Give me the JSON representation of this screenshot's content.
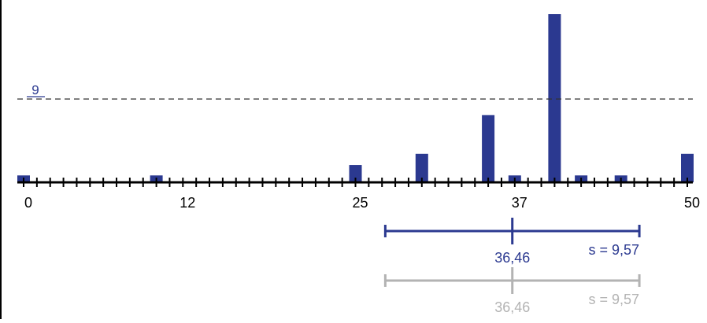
{
  "colors": {
    "bar": "#2B3990",
    "axis": "#000000",
    "reference_line": "#333333",
    "current_stat": "#2B3990",
    "previous_stat": "#B3B3B3"
  },
  "chart_data": {
    "type": "bar",
    "xlim": [
      0,
      50
    ],
    "x_tick_labels": [
      "0",
      "12",
      "25",
      "37",
      "50"
    ],
    "x_tick_values": [
      0,
      12,
      25,
      37,
      50
    ],
    "bars": [
      {
        "x": 0,
        "value": 0.8
      },
      {
        "x": 10,
        "value": 0.8
      },
      {
        "x": 25,
        "value": 2
      },
      {
        "x": 30,
        "value": 3.3
      },
      {
        "x": 35,
        "value": 7.8
      },
      {
        "x": 37,
        "value": 0.8
      },
      {
        "x": 40,
        "value": 19.5
      },
      {
        "x": 42,
        "value": 0.8
      },
      {
        "x": 45,
        "value": 0.8
      },
      {
        "x": 50,
        "value": 3.3
      }
    ],
    "reference_line": {
      "value": 9,
      "label": "9",
      "style": "dashed"
    },
    "summary_current": {
      "mean": 36.46,
      "sd": 9.57,
      "mean_label": "36,46",
      "sd_label": "s = 9,57"
    },
    "summary_previous": {
      "mean": 36.46,
      "sd": 9.57,
      "mean_label": "36,46",
      "sd_label": "s = 9,57"
    },
    "grid": false,
    "legend": "none"
  }
}
